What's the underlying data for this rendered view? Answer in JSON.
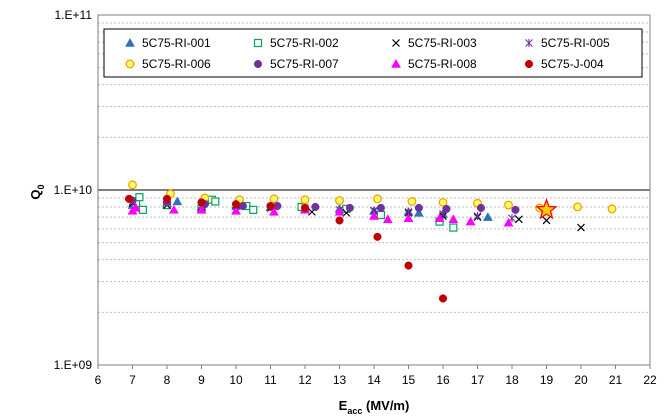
{
  "chart_data": {
    "type": "scatter",
    "title": "",
    "xlabel": {
      "main": "E",
      "sub": "acc",
      "rest": " (MV/m)"
    },
    "ylabel": {
      "main": "Q",
      "sub": "0"
    },
    "xlim": [
      6,
      22
    ],
    "ylim": [
      1000000000,
      100000000000
    ],
    "yscale": "log",
    "x_ticks": [
      "6",
      "7",
      "8",
      "9",
      "10",
      "11",
      "12",
      "13",
      "14",
      "15",
      "16",
      "17",
      "18",
      "19",
      "20",
      "21",
      "22"
    ],
    "y_ticks": [
      {
        "label": "1.E+09",
        "value": 1000000000
      },
      {
        "label": "1.E+10",
        "value": 10000000000
      },
      {
        "label": "1.E+11",
        "value": 100000000000
      }
    ],
    "grid": true,
    "legend_position": "top",
    "series": [
      {
        "name": "5C75-RI-001",
        "marker": "triangle",
        "color": "#2e74b5",
        "fill": true,
        "x": [
          7.0,
          7.1,
          8.0,
          8.3,
          9.0,
          10.0,
          11.0,
          12.0,
          13.0,
          14.0,
          15.0,
          15.3,
          16.0,
          17.3
        ],
        "y": [
          8200000000.0,
          8600000000.0,
          8400000000.0,
          8600000000.0,
          8000000000.0,
          8100000000.0,
          8000000000.0,
          7900000000.0,
          7800000000.0,
          7600000000.0,
          7500000000.0,
          7400000000.0,
          7300000000.0,
          7000000000.0
        ]
      },
      {
        "name": "5C75-RI-002",
        "marker": "square",
        "color": "#00a651",
        "fill": false,
        "x": [
          7.1,
          7.2,
          7.3,
          8.0,
          9.0,
          9.3,
          9.4,
          10.3,
          10.5,
          11.9,
          13.2,
          14.2,
          15.9,
          16.3
        ],
        "y": [
          8400000000.0,
          9100000000.0,
          7700000000.0,
          8200000000.0,
          7800000000.0,
          8800000000.0,
          8600000000.0,
          8100000000.0,
          7700000000.0,
          8000000000.0,
          7800000000.0,
          7200000000.0,
          6600000000.0,
          6100000000.0
        ]
      },
      {
        "name": "5C75-RI-003",
        "marker": "x",
        "color": "#000000",
        "fill": false,
        "x": [
          7.0,
          8.0,
          9.0,
          10.0,
          11.0,
          12.2,
          13.2,
          14.0,
          15.0,
          16.0,
          17.0,
          18.2,
          19.0,
          20.0
        ],
        "y": [
          8400000000.0,
          8200000000.0,
          8000000000.0,
          7600000000.0,
          7900000000.0,
          7500000000.0,
          7400000000.0,
          7600000000.0,
          7400000000.0,
          7100000000.0,
          7000000000.0,
          6800000000.0,
          6700000000.0,
          6100000000.0
        ]
      },
      {
        "name": "5C75-RI-005",
        "marker": "star",
        "color": "#7030a0",
        "fill": false,
        "x": [
          7.0,
          8.0,
          9.0,
          10.0,
          11.0,
          12.0,
          13.0,
          14.0,
          15.0,
          16.0,
          17.0,
          18.0
        ],
        "y": [
          8600000000.0,
          8500000000.0,
          8200000000.0,
          8100000000.0,
          8000000000.0,
          7900000000.0,
          7700000000.0,
          7600000000.0,
          7500000000.0,
          7300000000.0,
          7100000000.0,
          6900000000.0
        ]
      },
      {
        "name": "5C75-RI-006",
        "marker": "circle",
        "color": "#f5a000",
        "fill": "#ffff66",
        "x": [
          7.0,
          8.1,
          9.1,
          10.1,
          11.1,
          12.0,
          13.0,
          14.1,
          15.1,
          16.0,
          17.0,
          17.9,
          18.8,
          19.9,
          20.9
        ],
        "y": [
          10700000000.0,
          9500000000.0,
          9000000000.0,
          8800000000.0,
          8900000000.0,
          8800000000.0,
          8700000000.0,
          8900000000.0,
          8600000000.0,
          8500000000.0,
          8400000000.0,
          8200000000.0,
          7900000000.0,
          8000000000.0,
          7800000000.0
        ]
      },
      {
        "name": "5C75-RI-007",
        "marker": "circle",
        "color": "#7030a0",
        "fill": true,
        "x": [
          7.0,
          8.0,
          9.1,
          10.2,
          11.2,
          12.3,
          13.3,
          14.2,
          15.3,
          16.1,
          17.1,
          18.1
        ],
        "y": [
          8700000000.0,
          8500000000.0,
          8300000000.0,
          8100000000.0,
          8100000000.0,
          8000000000.0,
          7900000000.0,
          7900000000.0,
          7900000000.0,
          7800000000.0,
          7900000000.0,
          7700000000.0
        ]
      },
      {
        "name": "5C75-RI-008",
        "marker": "triangle",
        "color": "#ff00ff",
        "fill": true,
        "x": [
          7.0,
          7.1,
          8.2,
          9.0,
          10.0,
          11.1,
          12.0,
          13.0,
          14.0,
          14.4,
          15.0,
          15.9,
          16.3,
          16.8,
          17.9
        ],
        "y": [
          7600000000.0,
          7900000000.0,
          7700000000.0,
          7700000000.0,
          7600000000.0,
          7500000000.0,
          7700000000.0,
          7500000000.0,
          7100000000.0,
          6800000000.0,
          6900000000.0,
          6900000000.0,
          6800000000.0,
          6600000000.0,
          6500000000.0
        ]
      },
      {
        "name": "5C75-J-004",
        "marker": "circle",
        "color": "#c00000",
        "fill": true,
        "x": [
          6.9,
          8.0,
          9.0,
          10.0,
          11.0,
          12.0,
          13.0,
          14.1,
          15.0,
          16.0
        ],
        "y": [
          8900000000.0,
          8900000000.0,
          8500000000.0,
          8300000000.0,
          8100000000.0,
          7900000000.0,
          6700000000.0,
          5400000000.0,
          3700000000.0,
          2400000000.0
        ]
      }
    ],
    "annotations": [
      {
        "type": "star-marker",
        "x": 19.0,
        "y": 7700000000.0,
        "color": "#ff0000",
        "fill": "#ffcc00"
      }
    ]
  }
}
